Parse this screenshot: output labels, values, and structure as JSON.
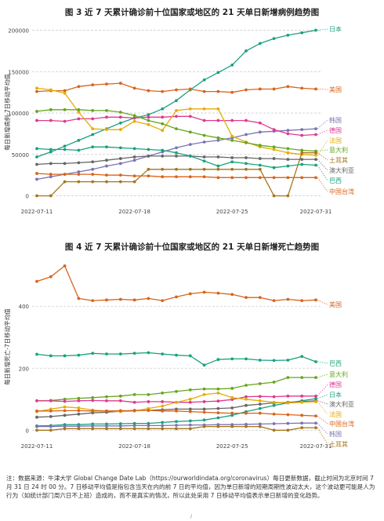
{
  "page": {
    "footnote": "注：数据来源：牛津大学 Global Change Date Lab（https://ourworldindata.org/coronavirus）每日更新数据，截止时间为北京时间 7 月 31 日 24 时 00 分。7 日移动平均值是指包含当天在内的前 7 日的平均值，因为单日新增的短期周期性波动太大，这个波动更可能是人为行为（如统计部门周六日不上班）造成的，而不是真实的情况，所以此处采用 7 日移动平均值表示单日新增的变化趋势。",
    "page_mark": "/"
  },
  "chart_data": [
    {
      "type": "line",
      "title": "图 3  近 7 天累计确诊前十位国家或地区的 21 天单日新增病例趋势图",
      "ylabel": "每日新增病例-7日移动平均值",
      "xlabel": "",
      "x": [
        "2022-07-11",
        "2022-07-12",
        "2022-07-13",
        "2022-07-14",
        "2022-07-15",
        "2022-07-16",
        "2022-07-17",
        "2022-07-18",
        "2022-07-19",
        "2022-07-20",
        "2022-07-21",
        "2022-07-22",
        "2022-07-23",
        "2022-07-24",
        "2022-07-25",
        "2022-07-26",
        "2022-07-27",
        "2022-07-28",
        "2022-07-29",
        "2022-07-30",
        "2022-07-31"
      ],
      "xticks": [
        "2022-07-11",
        "2022-07-18",
        "2022-07-25",
        "2022-07-31"
      ],
      "yticks": [
        0,
        50000,
        100000,
        150000,
        200000
      ],
      "ylim": [
        -8000,
        210000
      ],
      "grid": true,
      "legend": "right-end labels",
      "series": [
        {
          "name": "日本",
          "color": "#1aa081",
          "values": [
            47000,
            53000,
            60000,
            67000,
            74000,
            81000,
            88000,
            94000,
            98000,
            105000,
            115000,
            128000,
            140000,
            149000,
            158000,
            175000,
            184000,
            190000,
            194000,
            197000,
            200000
          ]
        },
        {
          "name": "美国",
          "color": "#d9641a",
          "values": [
            126000,
            127000,
            127000,
            132000,
            134000,
            135000,
            136000,
            130000,
            127000,
            126000,
            128000,
            129000,
            126000,
            126000,
            125000,
            128000,
            129000,
            129000,
            132000,
            130000,
            129000
          ]
        },
        {
          "name": "韩国",
          "color": "#7a73b5",
          "values": [
            20000,
            23000,
            26000,
            29000,
            32000,
            36000,
            39000,
            43000,
            48000,
            53000,
            58000,
            62000,
            65000,
            67000,
            70000,
            74000,
            77000,
            78000,
            79000,
            80000,
            81000
          ]
        },
        {
          "name": "德国",
          "color": "#de3a91",
          "values": [
            91000,
            91000,
            90000,
            93000,
            93000,
            95000,
            95000,
            94000,
            95000,
            95000,
            96000,
            96000,
            91000,
            91000,
            91000,
            91000,
            88000,
            80000,
            75000,
            73000,
            74000
          ]
        },
        {
          "name": "法国",
          "color": "#e6ab02",
          "values": [
            130000,
            128000,
            124000,
            101000,
            81000,
            80000,
            80000,
            90000,
            86000,
            79000,
            103000,
            105000,
            105000,
            105000,
            72000,
            65000,
            59000,
            56000,
            52000,
            50000,
            49000
          ]
        },
        {
          "name": "意大利",
          "color": "#66a61e",
          "values": [
            102000,
            104000,
            104000,
            104000,
            103000,
            103000,
            101000,
            97000,
            91000,
            87000,
            81000,
            77000,
            73000,
            70000,
            67000,
            64000,
            61000,
            59000,
            57000,
            55000,
            54000
          ]
        },
        {
          "name": "土耳其",
          "color": "#a6761d",
          "values": [
            0,
            0,
            17000,
            17000,
            17000,
            17000,
            17000,
            17000,
            32000,
            32000,
            32000,
            32000,
            32000,
            32000,
            32000,
            32000,
            32000,
            0,
            0,
            52000,
            52000
          ]
        },
        {
          "name": "澳大利亚",
          "color": "#666666",
          "values": [
            38000,
            39000,
            39000,
            40000,
            41000,
            43000,
            45000,
            47000,
            48000,
            48000,
            48000,
            48000,
            47000,
            47000,
            46000,
            46000,
            45000,
            45000,
            44000,
            44000,
            44000
          ]
        },
        {
          "name": "巴西",
          "color": "#16a37d",
          "values": [
            57000,
            56000,
            56000,
            55000,
            59000,
            59000,
            58000,
            57000,
            56000,
            55000,
            52000,
            48000,
            42000,
            36000,
            41000,
            39000,
            37000,
            34000,
            36000,
            38000,
            37000
          ]
        },
        {
          "name": "中国台湾",
          "color": "#d9641a",
          "values": [
            27000,
            26000,
            26000,
            26000,
            26000,
            25000,
            25000,
            24000,
            24000,
            23000,
            23000,
            23000,
            23000,
            22000,
            22000,
            22000,
            22000,
            22000,
            22000,
            22000,
            22000
          ]
        }
      ]
    },
    {
      "type": "line",
      "title": "图 4  近 7 天累计确诊前十位国家或地区的 21 天单日新增死亡趋势图",
      "ylabel": "每日新增死亡-7日移动平均值",
      "xlabel": "",
      "x": [
        "2022-07-11",
        "2022-07-12",
        "2022-07-13",
        "2022-07-14",
        "2022-07-15",
        "2022-07-16",
        "2022-07-17",
        "2022-07-18",
        "2022-07-19",
        "2022-07-20",
        "2022-07-21",
        "2022-07-22",
        "2022-07-23",
        "2022-07-24",
        "2022-07-25",
        "2022-07-26",
        "2022-07-27",
        "2022-07-28",
        "2022-07-29",
        "2022-07-30",
        "2022-07-31"
      ],
      "xticks": [
        "2022-07-11",
        "2022-07-18",
        "2022-07-25",
        "2022-07-31"
      ],
      "yticks": [
        0,
        200,
        400
      ],
      "ylim": [
        -22,
        560
      ],
      "grid": true,
      "legend": "right-end labels",
      "series": [
        {
          "name": "美国",
          "color": "#d9641a",
          "values": [
            480,
            495,
            530,
            425,
            418,
            420,
            422,
            420,
            425,
            418,
            430,
            440,
            445,
            442,
            438,
            428,
            428,
            418,
            422,
            418,
            420
          ]
        },
        {
          "name": "巴西",
          "color": "#16a37d",
          "values": [
            245,
            240,
            240,
            242,
            248,
            246,
            246,
            248,
            250,
            246,
            242,
            240,
            210,
            228,
            230,
            230,
            226,
            225,
            226,
            238,
            221
          ]
        },
        {
          "name": "意大利",
          "color": "#66a61e",
          "values": [
            95,
            96,
            100,
            103,
            105,
            108,
            110,
            115,
            115,
            120,
            125,
            130,
            133,
            133,
            135,
            145,
            150,
            155,
            170,
            170,
            170
          ]
        },
        {
          "name": "德国",
          "color": "#de3a91",
          "values": [
            95,
            95,
            93,
            95,
            96,
            95,
            95,
            90,
            92,
            92,
            90,
            90,
            92,
            94,
            99,
            108,
            109,
            108,
            110,
            110,
            110
          ]
        },
        {
          "name": "日本",
          "color": "#1aa081",
          "values": [
            14,
            15,
            18,
            18,
            20,
            20,
            21,
            22,
            22,
            25,
            28,
            30,
            33,
            40,
            48,
            60,
            70,
            80,
            88,
            95,
            102
          ]
        },
        {
          "name": "澳大利亚",
          "color": "#666666",
          "values": [
            42,
            44,
            48,
            52,
            56,
            58,
            61,
            64,
            64,
            66,
            68,
            68,
            68,
            70,
            72,
            80,
            84,
            88,
            90,
            92,
            95
          ]
        },
        {
          "name": "法国",
          "color": "#e6ab02",
          "values": [
            60,
            68,
            75,
            72,
            65,
            62,
            60,
            62,
            70,
            78,
            90,
            100,
            115,
            120,
            105,
            100,
            95,
            90,
            88,
            90,
            92
          ]
        },
        {
          "name": "中国台湾",
          "color": "#d9641a",
          "values": [
            62,
            62,
            63,
            63,
            62,
            62,
            63,
            63,
            64,
            62,
            62,
            60,
            58,
            56,
            55,
            55,
            55,
            52,
            50,
            48,
            46
          ]
        },
        {
          "name": "韩国",
          "color": "#7a73b5",
          "values": [
            12,
            12,
            13,
            13,
            14,
            14,
            14,
            15,
            15,
            15,
            16,
            17,
            17,
            18,
            18,
            19,
            20,
            21,
            22,
            23,
            23
          ]
        },
        {
          "name": "土耳其",
          "color": "#a6761d",
          "values": [
            0,
            0,
            5,
            5,
            5,
            5,
            5,
            5,
            5,
            5,
            5,
            5,
            12,
            12,
            12,
            12,
            12,
            0,
            0,
            8,
            8
          ]
        }
      ]
    }
  ]
}
